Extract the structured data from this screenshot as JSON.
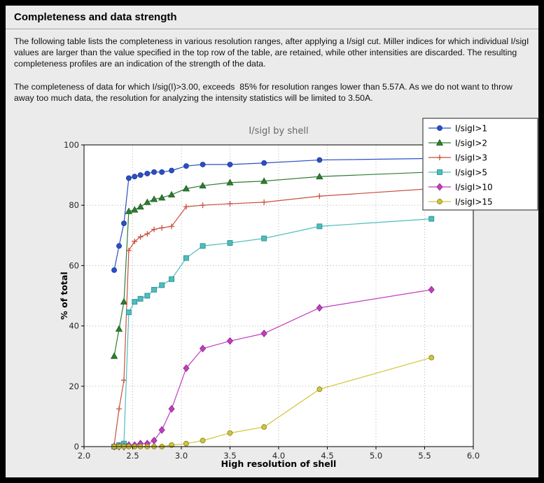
{
  "header": {
    "title": "Completeness and data strength"
  },
  "paragraphs": {
    "p1": "The following table lists the completeness in various resolution ranges, after applying a I/sigI cut. Miller indices for which individual I/sigI values are larger than the value specified in the top row of the table, are retained, while other intensities are discarded. The resulting completeness profiles are an indication of the strength of the data.",
    "p2": "The completeness of data for which I/sig(I)>3.00, exceeds  85% for resolution ranges lower than 5.57A. As we do not want to throw away too much data, the resolution for analyzing the intensity statistics will be limited to 3.50A."
  },
  "chart_data": {
    "type": "line",
    "title": "I/sigI by shell",
    "xlabel": "High resolution of shell",
    "ylabel": "% of total",
    "xlim": [
      2.0,
      6.0
    ],
    "ylim": [
      0,
      100
    ],
    "xticks": [
      2.0,
      2.5,
      3.0,
      3.5,
      4.0,
      4.5,
      5.0,
      5.5,
      6.0
    ],
    "yticks": [
      0,
      20,
      40,
      60,
      80,
      100
    ],
    "grid": "dotted",
    "legend_position": "top-right",
    "plot_bg": "#ffffff",
    "figure_bg": "#ebebeb",
    "grid_color": "#b3b3b3",
    "title_color": "#666666",
    "x": [
      2.31,
      2.36,
      2.41,
      2.46,
      2.52,
      2.58,
      2.65,
      2.72,
      2.8,
      2.9,
      3.05,
      3.22,
      3.5,
      3.85,
      4.42,
      5.57
    ],
    "series": [
      {
        "name": "I/sigI>1",
        "color": "#2b4fc4",
        "edge": "#1f3a9e",
        "marker": "circle",
        "values": [
          58.5,
          66.5,
          74,
          89,
          89.5,
          90,
          90.5,
          91,
          91,
          91.5,
          93,
          93.5,
          93.5,
          94,
          95,
          95.5
        ]
      },
      {
        "name": "I/sigI>2",
        "color": "#2e7d32",
        "edge": "#1f5c1f",
        "marker": "triangle",
        "values": [
          30,
          39,
          48,
          78,
          78.5,
          79.5,
          81,
          82,
          82.5,
          83.5,
          85.5,
          86.5,
          87.5,
          88,
          89.5,
          91
        ]
      },
      {
        "name": "I/sigI>3",
        "color": "#c94f3d",
        "edge": "#c94f3d",
        "marker": "plus",
        "values": [
          0.5,
          12.5,
          22,
          65,
          68,
          69.5,
          70.5,
          72,
          72.5,
          73,
          79.5,
          80,
          80.5,
          81,
          83,
          85.5
        ]
      },
      {
        "name": "I/sigI>5",
        "color": "#4dbdbd",
        "edge": "#2f8f8f",
        "marker": "square",
        "values": [
          0,
          0.5,
          1,
          44.5,
          48,
          49,
          50,
          52,
          53.5,
          55.5,
          62.5,
          66.5,
          67.5,
          69,
          73,
          75.5
        ]
      },
      {
        "name": "I/sigI>10",
        "color": "#bf3fbf",
        "edge": "#8f2d8f",
        "marker": "diamond",
        "values": [
          0,
          0,
          0,
          0.5,
          0.5,
          1,
          1,
          2,
          5.5,
          12.5,
          26,
          32.5,
          35,
          37.5,
          46,
          52
        ]
      },
      {
        "name": "I/sigI>15",
        "color": "#d2c53c",
        "edge": "#8f872a",
        "marker": "circle",
        "values": [
          0,
          0,
          0,
          0,
          0,
          0,
          0,
          0,
          0,
          0.5,
          1,
          2,
          4.5,
          6.5,
          19,
          29.5
        ]
      }
    ]
  }
}
